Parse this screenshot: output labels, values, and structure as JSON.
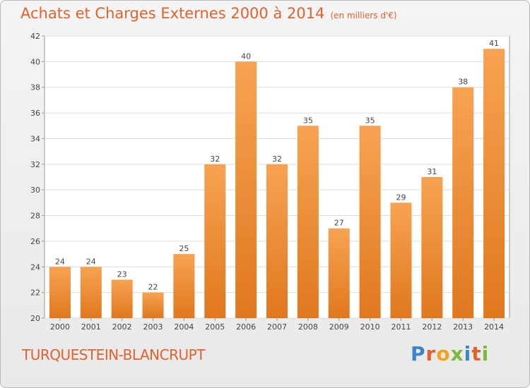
{
  "chart_data": {
    "type": "bar",
    "title": "Achats et Charges Externes 2000 à 2014",
    "subtitle": "(en milliers d'€)",
    "categories": [
      "2000",
      "2001",
      "2002",
      "2003",
      "2004",
      "2005",
      "2006",
      "2007",
      "2008",
      "2009",
      "2010",
      "2011",
      "2012",
      "2013",
      "2014"
    ],
    "values": [
      24,
      24,
      23,
      22,
      25,
      32,
      40,
      32,
      35,
      27,
      35,
      29,
      31,
      38,
      41
    ],
    "data_labels": [
      "24",
      "24",
      "23",
      "22",
      "25",
      "32",
      "40",
      "32",
      "35",
      "27",
      "35",
      "29",
      "31",
      "38",
      "41"
    ],
    "ylim": [
      20,
      42
    ],
    "yticks": [
      "20",
      "22",
      "24",
      "26",
      "28",
      "30",
      "32",
      "34",
      "36",
      "38",
      "40",
      "42"
    ],
    "grid": true,
    "xlabel": "",
    "ylabel": "",
    "bar_color": "#f0923c"
  },
  "footer": {
    "location": "TURQUESTEIN-BLANCRUPT",
    "logo_text": "Proxiti",
    "logo_colors": [
      "#3a86c8",
      "#e0622e",
      "#f3a21c",
      "#7cb93a",
      "#3a86c8",
      "#e0622e",
      "#7cb93a"
    ]
  }
}
